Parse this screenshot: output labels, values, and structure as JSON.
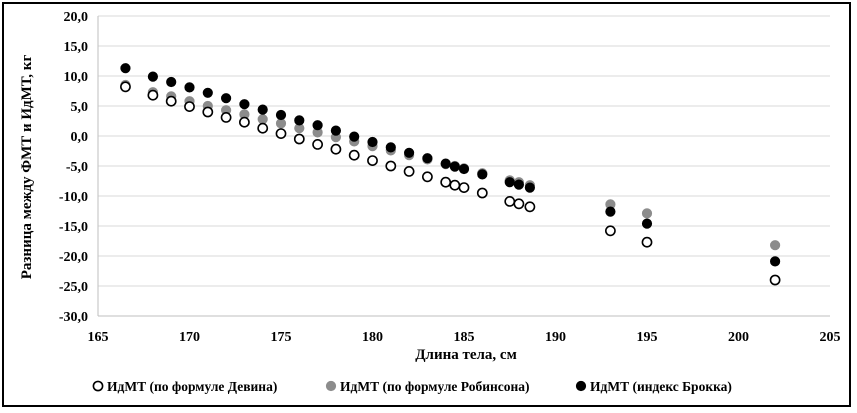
{
  "chart_data": {
    "type": "scatter",
    "xlabel": "Длина тела, см",
    "ylabel": "Разница между ФМТ и  ИдМТ,  кг",
    "xlim": [
      165,
      205
    ],
    "ylim": [
      -30,
      20
    ],
    "x_ticks": [
      "165",
      "170",
      "175",
      "180",
      "185",
      "190",
      "195",
      "200",
      "205"
    ],
    "y_ticks": [
      "20,0",
      "15,0",
      "10,0",
      "5,0",
      "0,0",
      "-5,0",
      "-10,0",
      "-15,0",
      "-20,0",
      "-25,0",
      "-30,0"
    ],
    "grid": "horizontal",
    "legend_position": "bottom",
    "series": [
      {
        "name": "ИдМТ (по формуле Девина)",
        "marker": "hollow",
        "color": "#000000",
        "x": [
          166.5,
          168,
          169,
          170,
          171,
          172,
          173,
          174,
          175,
          176,
          177,
          178,
          179,
          180,
          181,
          182,
          183,
          184,
          184.5,
          185,
          186,
          187.5,
          188,
          188.6,
          193,
          195,
          202
        ],
        "y": [
          8.2,
          6.8,
          5.8,
          4.9,
          4.0,
          3.1,
          2.3,
          1.3,
          0.4,
          -0.5,
          -1.4,
          -2.2,
          -3.2,
          -4.1,
          -5.0,
          -5.9,
          -6.8,
          -7.7,
          -8.2,
          -8.6,
          -9.5,
          -10.9,
          -11.3,
          -11.8,
          -15.8,
          -17.7,
          -24.0
        ]
      },
      {
        "name": "ИдМТ (по формуле Робинсона)",
        "marker": "gray",
        "color": "#8c8c8c",
        "x": [
          166.5,
          168,
          169,
          170,
          171,
          172,
          173,
          174,
          175,
          176,
          177,
          178,
          179,
          180,
          181,
          182,
          183,
          184,
          184.5,
          185,
          186,
          187.5,
          188,
          188.6,
          193,
          195,
          202
        ],
        "y": [
          8.5,
          7.3,
          6.6,
          5.8,
          5.0,
          4.3,
          3.6,
          2.8,
          2.1,
          1.3,
          0.6,
          -0.2,
          -0.9,
          -1.7,
          -2.4,
          -3.2,
          -3.9,
          -4.7,
          -5.0,
          -5.4,
          -6.2,
          -7.4,
          -7.7,
          -8.2,
          -11.4,
          -12.9,
          -18.2
        ]
      },
      {
        "name": "ИдМТ (индекс Брокка)",
        "marker": "black",
        "color": "#000000",
        "x": [
          166.5,
          168,
          169,
          170,
          171,
          172,
          173,
          174,
          175,
          176,
          177,
          178,
          179,
          180,
          181,
          182,
          183,
          184,
          184.5,
          185,
          186,
          187.5,
          188,
          188.6,
          193,
          195,
          202
        ],
        "y": [
          11.3,
          9.9,
          9.0,
          8.1,
          7.2,
          6.3,
          5.3,
          4.4,
          3.5,
          2.6,
          1.8,
          0.9,
          -0.1,
          -1.0,
          -1.9,
          -2.8,
          -3.7,
          -4.6,
          -5.1,
          -5.5,
          -6.4,
          -7.7,
          -8.1,
          -8.6,
          -12.6,
          -14.6,
          -20.9
        ]
      }
    ]
  }
}
